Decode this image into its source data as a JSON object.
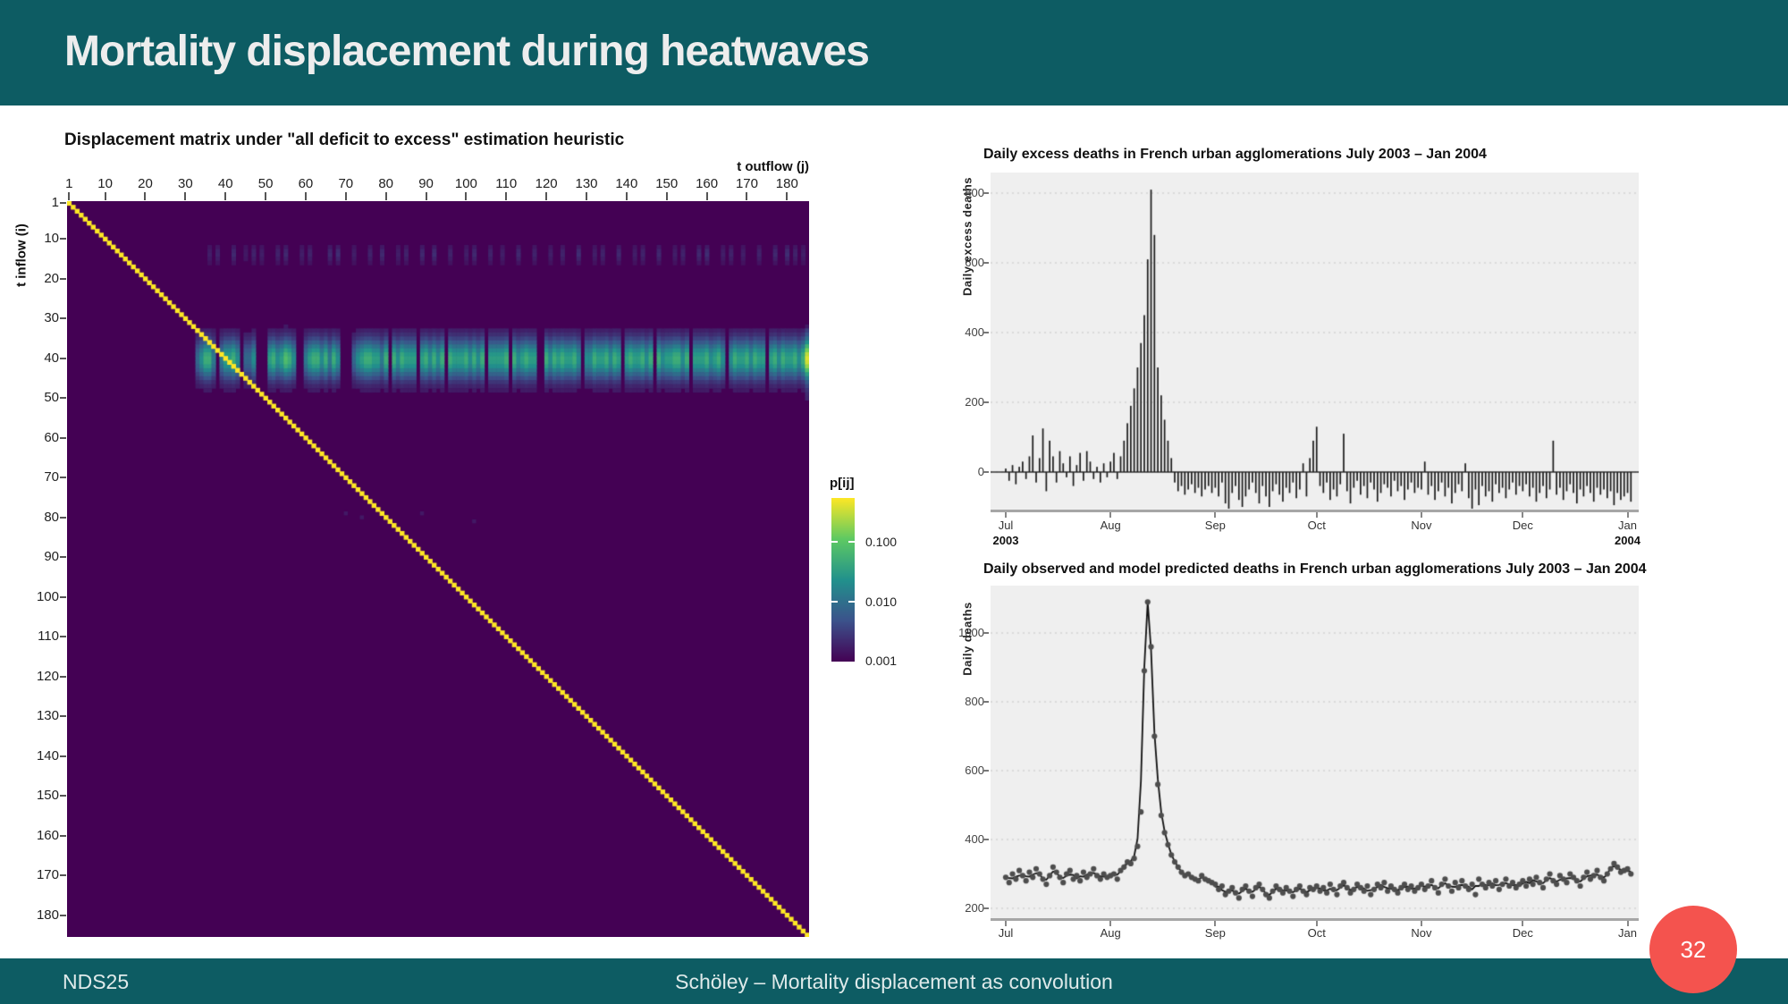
{
  "slide": {
    "title": "Mortality displacement during heatwaves",
    "footer_left": "NDS25",
    "footer_center": "Schöley – Mortality displacement as convolution",
    "page_number": "32",
    "colors": {
      "teal": "#0d5c63",
      "badge_red": "#f4534e",
      "panel_gray": "#efefef"
    }
  },
  "chart_data": [
    {
      "type": "heatmap",
      "title": "Displacement matrix under \"all deficit to excess\" estimation heuristic",
      "xlabel": "t outflow (j)",
      "ylabel": "t inflow (i)",
      "n": 185,
      "x_ticks": [
        "1",
        "10",
        "20",
        "30",
        "40",
        "50",
        "60",
        "70",
        "80",
        "90",
        "100",
        "110",
        "120",
        "130",
        "140",
        "150",
        "160",
        "170",
        "180"
      ],
      "y_ticks": [
        "1",
        "10",
        "20",
        "30",
        "40",
        "50",
        "60",
        "70",
        "80",
        "90",
        "100",
        "110",
        "120",
        "130",
        "140",
        "150",
        "160",
        "170",
        "180"
      ],
      "colormap": "viridis",
      "scale": "log",
      "legend": {
        "title": "p[ij]",
        "tick_labels": [
          "0.100",
          "0.010",
          "0.001"
        ],
        "tick_values": [
          0.1,
          0.01,
          0.001
        ]
      },
      "structure": {
        "background_value": 0.001,
        "diagonal": {
          "value_approx": 0.15,
          "color": "#fde725"
        },
        "hot_band": {
          "row_center": 40.2,
          "row_sigma": 3.4,
          "col_start": 33,
          "intensity_pattern": "468850577860446000786798600578868586000467887758086877707868680877786868077778086787700868787786066877868707877868086778868077786786068778687707868778689"
        },
        "faint_band": {
          "row_center": 13.8,
          "row_sigma": 1.3,
          "col_start": 33,
          "intensity_pattern": "000304000500204030004050003040000506000300040050003040005006000400030500040030005000400030040006000304000500030400050003040005060003040030004000500604030"
        },
        "right_edge": {
          "col": 185,
          "row_range": [
            33,
            50
          ]
        },
        "specks": [
          {
            "row": 79,
            "col": 70
          },
          {
            "row": 80,
            "col": 74
          },
          {
            "row": 79,
            "col": 89
          },
          {
            "row": 81,
            "col": 102
          }
        ]
      }
    },
    {
      "type": "bar",
      "title": "Daily excess deaths in French urban agglomerations July 2003 – Jan 2004",
      "ylabel": "Daily excess deaths",
      "y_ticks": [
        800,
        600,
        400,
        200,
        0
      ],
      "ylim": [
        -110,
        860
      ],
      "grid": "dotted",
      "months": [
        "Jul",
        "Aug",
        "Sep",
        "Oct",
        "Nov",
        "Dec",
        "Jan"
      ],
      "month_start_day": [
        0,
        31,
        62,
        92,
        123,
        153,
        184
      ],
      "year_labels": [
        {
          "month_index": 0,
          "label": "2003"
        },
        {
          "month_index": 6,
          "label": "2004"
        }
      ],
      "values": [
        10,
        -25,
        20,
        -35,
        15,
        30,
        -20,
        45,
        105,
        -30,
        40,
        125,
        -55,
        90,
        45,
        -30,
        60,
        25,
        -15,
        45,
        -40,
        20,
        55,
        -25,
        60,
        30,
        -20,
        15,
        -30,
        25,
        -15,
        30,
        55,
        -20,
        45,
        90,
        140,
        190,
        240,
        300,
        370,
        450,
        610,
        810,
        680,
        300,
        220,
        150,
        90,
        40,
        -30,
        -55,
        -40,
        -65,
        -50,
        -35,
        -60,
        -45,
        -70,
        -50,
        -40,
        -60,
        -45,
        -70,
        -30,
        -90,
        -105,
        -60,
        -40,
        -80,
        -100,
        -70,
        -50,
        -30,
        -60,
        -90,
        -40,
        -70,
        -100,
        -55,
        -35,
        -65,
        -85,
        -45,
        -60,
        -30,
        -75,
        -50,
        25,
        -70,
        40,
        90,
        130,
        -40,
        -60,
        -30,
        -80,
        -50,
        -70,
        -35,
        110,
        -55,
        -90,
        -45,
        -25,
        -65,
        -40,
        -75,
        -30,
        -50,
        -85,
        -60,
        -35,
        -45,
        -70,
        -25,
        -55,
        -40,
        -80,
        -50,
        -30,
        -60,
        -45,
        -50,
        30,
        -65,
        -40,
        -80,
        -55,
        -30,
        -70,
        -45,
        -90,
        -60,
        -35,
        -55,
        25,
        -75,
        -105,
        -50,
        -95,
        -40,
        -70,
        -55,
        -85,
        -35,
        -60,
        -45,
        -75,
        -50,
        -30,
        -65,
        -40,
        -55,
        -35,
        -70,
        -45,
        -85,
        -60,
        -40,
        -75,
        -50,
        90,
        -65,
        -45,
        -80,
        -55,
        -35,
        -60,
        -90,
        -50,
        -70,
        -40,
        -60,
        -85,
        -45,
        -65,
        -50,
        -75,
        -55,
        -95,
        -60,
        -80,
        -70,
        -60,
        -85
      ]
    },
    {
      "type": "line+scatter",
      "title": "Daily observed and model predicted deaths in French urban agglomerations July 2003 – Jan 2004",
      "ylabel": "Daily deaths",
      "y_ticks": [
        1000,
        800,
        600,
        400,
        200
      ],
      "ylim": [
        160,
        1130
      ],
      "grid": "dotted",
      "months": [
        "Jul",
        "Aug",
        "Sep",
        "Oct",
        "Nov",
        "Dec",
        "Jan"
      ],
      "month_start_day": [
        0,
        31,
        62,
        92,
        123,
        153,
        184
      ],
      "series": [
        {
          "name": "observed",
          "style": "points",
          "values": [
            290,
            275,
            300,
            285,
            310,
            295,
            280,
            305,
            290,
            315,
            300,
            285,
            270,
            295,
            320,
            305,
            290,
            275,
            300,
            310,
            285,
            295,
            280,
            305,
            290,
            300,
            315,
            295,
            285,
            300,
            290,
            295,
            300,
            285,
            310,
            320,
            335,
            330,
            345,
            380,
            480,
            890,
            1090,
            960,
            700,
            560,
            470,
            420,
            385,
            355,
            335,
            320,
            305,
            295,
            300,
            290,
            285,
            280,
            295,
            285,
            280,
            275,
            270,
            255,
            265,
            240,
            250,
            260,
            245,
            230,
            255,
            265,
            250,
            235,
            260,
            270,
            255,
            240,
            230,
            250,
            265,
            255,
            245,
            260,
            250,
            235,
            255,
            265,
            250,
            240,
            260,
            255,
            265,
            250,
            260,
            245,
            270,
            255,
            240,
            265,
            275,
            260,
            245,
            255,
            270,
            260,
            250,
            265,
            240,
            255,
            270,
            260,
            275,
            250,
            265,
            255,
            245,
            260,
            270,
            255,
            265,
            250,
            260,
            270,
            255,
            265,
            280,
            260,
            245,
            270,
            285,
            265,
            250,
            275,
            260,
            280,
            265,
            255,
            270,
            240,
            285,
            270,
            260,
            275,
            265,
            280,
            255,
            270,
            285,
            265,
            275,
            260,
            270,
            280,
            265,
            285,
            270,
            290,
            275,
            260,
            285,
            300,
            280,
            270,
            295,
            285,
            275,
            300,
            290,
            280,
            265,
            290,
            305,
            285,
            295,
            310,
            290,
            280,
            300,
            315,
            330,
            320,
            305,
            310,
            315,
            300
          ]
        },
        {
          "name": "model predicted",
          "style": "line",
          "values": [
            288,
            288,
            287,
            292,
            295,
            296,
            293,
            292,
            298,
            302,
            300,
            285,
            283,
            295,
            307,
            305,
            290,
            288,
            295,
            298,
            297,
            287,
            293,
            292,
            298,
            302,
            303,
            298,
            293,
            292,
            293,
            293,
            297,
            298,
            308,
            325,
            329,
            337,
            352,
            402,
            570,
            900,
            1090,
            950,
            710,
            575,
            480,
            424,
            387,
            357,
            336,
            320,
            306,
            298,
            296,
            291,
            284,
            283,
            290,
            283,
            278,
            277,
            263,
            263,
            253,
            248,
            250,
            252,
            245,
            243,
            250,
            257,
            250,
            248,
            255,
            262,
            255,
            242,
            239,
            248,
            257,
            255,
            253,
            252,
            248,
            247,
            253,
            257,
            252,
            247,
            252,
            257,
            258,
            258,
            252,
            252,
            257,
            250,
            253,
            260,
            267,
            260,
            253,
            257,
            262,
            260,
            258,
            251,
            253,
            255,
            262,
            268,
            262,
            259,
            257,
            255,
            253,
            258,
            262,
            263,
            257,
            258,
            260,
            265,
            263,
            267,
            268,
            262,
            258,
            267,
            273,
            267,
            263,
            262,
            267,
            268,
            267,
            263,
            255,
            265,
            265,
            272,
            268,
            267,
            273,
            267,
            268,
            273,
            273,
            270,
            267,
            268,
            265,
            272,
            277,
            273,
            282,
            278,
            275,
            273,
            282,
            288,
            283,
            278,
            283,
            285,
            287,
            288,
            287,
            278,
            278,
            287,
            293,
            295,
            297,
            298,
            293,
            290,
            298,
            320,
            322,
            318,
            312,
            308,
            308,
            307
          ]
        }
      ]
    }
  ]
}
